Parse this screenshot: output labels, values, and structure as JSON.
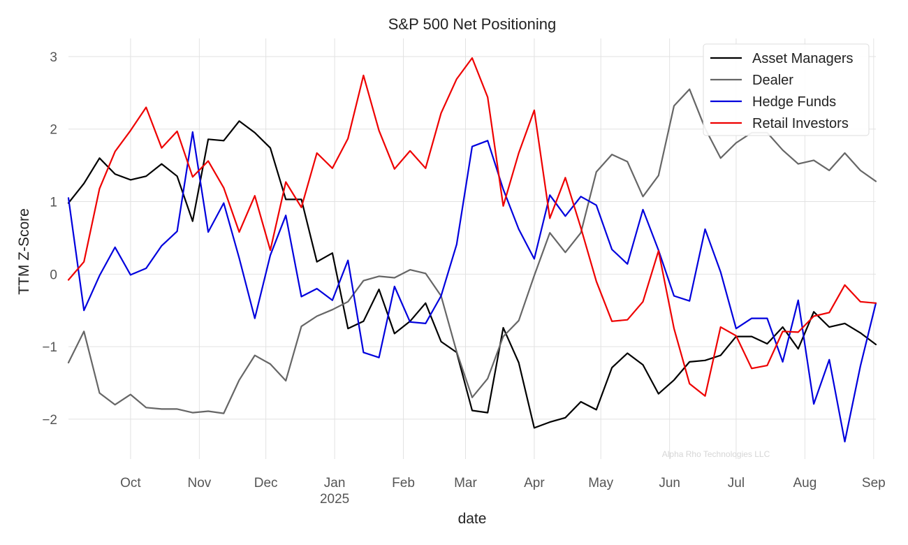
{
  "chart_data": {
    "type": "line",
    "title": "S&P 500 Net Positioning",
    "xlabel": "date",
    "ylabel": "TTM Z-Score",
    "ylim": [
      -2.55,
      3.25
    ],
    "yticks": [
      3,
      2,
      1,
      0,
      -1,
      -2
    ],
    "ytick_labels": [
      "3",
      "2",
      "1",
      "0",
      "−1",
      "−2"
    ],
    "xlim": [
      "2024-09-03",
      "2025-09-02"
    ],
    "xticks": [
      {
        "label": "Oct",
        "date": "2024-10-01"
      },
      {
        "label": "Nov",
        "date": "2024-11-01"
      },
      {
        "label": "Dec",
        "date": "2024-12-01"
      },
      {
        "label": "Jan",
        "sublabel": "2025",
        "date": "2025-01-01"
      },
      {
        "label": "Feb",
        "date": "2025-02-01"
      },
      {
        "label": "Mar",
        "date": "2025-03-01"
      },
      {
        "label": "Apr",
        "date": "2025-04-01"
      },
      {
        "label": "May",
        "date": "2025-05-01"
      },
      {
        "label": "Jun",
        "date": "2025-06-01"
      },
      {
        "label": "Jul",
        "date": "2025-07-01"
      },
      {
        "label": "Aug",
        "date": "2025-08-01"
      },
      {
        "label": "Sep",
        "date": "2025-09-01"
      }
    ],
    "grid": true,
    "legend_position": "top-right",
    "watermark": "Alpha Rho Technologies LLC",
    "x": [
      "2024-09-03",
      "2024-09-10",
      "2024-09-17",
      "2024-09-24",
      "2024-10-01",
      "2024-10-08",
      "2024-10-15",
      "2024-10-22",
      "2024-10-29",
      "2024-11-05",
      "2024-11-12",
      "2024-11-19",
      "2024-11-26",
      "2024-12-03",
      "2024-12-10",
      "2024-12-17",
      "2024-12-24",
      "2024-12-31",
      "2025-01-07",
      "2025-01-14",
      "2025-01-21",
      "2025-01-28",
      "2025-02-04",
      "2025-02-11",
      "2025-02-18",
      "2025-02-25",
      "2025-03-04",
      "2025-03-11",
      "2025-03-18",
      "2025-03-25",
      "2025-04-01",
      "2025-04-08",
      "2025-04-15",
      "2025-04-22",
      "2025-04-29",
      "2025-05-06",
      "2025-05-13",
      "2025-05-20",
      "2025-05-27",
      "2025-06-03",
      "2025-06-10",
      "2025-06-17",
      "2025-06-24",
      "2025-07-01",
      "2025-07-08",
      "2025-07-15",
      "2025-07-22",
      "2025-07-29",
      "2025-08-05",
      "2025-08-12",
      "2025-08-19",
      "2025-08-26",
      "2025-09-02"
    ],
    "series": [
      {
        "name": "Asset Managers",
        "color": "#000000",
        "values": [
          0.98,
          1.25,
          1.6,
          1.38,
          1.3,
          1.35,
          1.52,
          1.35,
          0.73,
          1.86,
          1.84,
          2.11,
          1.95,
          1.74,
          1.03,
          1.03,
          0.17,
          0.29,
          -0.75,
          -0.65,
          -0.21,
          -0.82,
          -0.65,
          -0.4,
          -0.93,
          -1.08,
          -1.88,
          -1.91,
          -0.74,
          -1.22,
          -2.12,
          -2.04,
          -1.98,
          -1.76,
          -1.87,
          -1.29,
          -1.09,
          -1.25,
          -1.65,
          -1.46,
          -1.21,
          -1.19,
          -1.12,
          -0.86,
          -0.86,
          -0.96,
          -0.73,
          -1.03,
          -0.52,
          -0.73,
          -0.68,
          -0.81,
          -0.97
        ]
      },
      {
        "name": "Dealer",
        "color": "#666666",
        "values": [
          -1.22,
          -0.79,
          -1.64,
          -1.8,
          -1.66,
          -1.84,
          -1.86,
          -1.86,
          -1.91,
          -1.89,
          -1.92,
          -1.46,
          -1.12,
          -1.24,
          -1.47,
          -0.72,
          -0.58,
          -0.49,
          -0.38,
          -0.09,
          -0.03,
          -0.05,
          0.06,
          0.01,
          -0.3,
          -1.07,
          -1.7,
          -1.44,
          -0.86,
          -0.64,
          -0.02,
          0.57,
          0.3,
          0.57,
          1.41,
          1.65,
          1.55,
          1.07,
          1.36,
          2.32,
          2.55,
          2.01,
          1.6,
          1.81,
          1.95,
          1.95,
          1.71,
          1.52,
          1.57,
          1.43,
          1.67,
          1.43,
          1.28
        ]
      },
      {
        "name": "Hedge Funds",
        "color": "#0000dd",
        "values": [
          1.05,
          -0.5,
          -0.02,
          0.37,
          -0.01,
          0.08,
          0.39,
          0.59,
          1.96,
          0.58,
          0.98,
          0.22,
          -0.61,
          0.26,
          0.81,
          -0.31,
          -0.2,
          -0.36,
          0.19,
          -1.08,
          -1.15,
          -0.17,
          -0.66,
          -0.68,
          -0.3,
          0.41,
          1.76,
          1.84,
          1.17,
          0.62,
          0.21,
          1.09,
          0.8,
          1.07,
          0.95,
          0.34,
          0.14,
          0.89,
          0.33,
          -0.3,
          -0.37,
          0.62,
          0.03,
          -0.75,
          -0.61,
          -0.61,
          -1.21,
          -0.36,
          -1.79,
          -1.18,
          -2.31,
          -1.27,
          -0.4
        ]
      },
      {
        "name": "Retail Investors",
        "color": "#ee0000",
        "values": [
          -0.08,
          0.17,
          1.18,
          1.69,
          1.98,
          2.3,
          1.74,
          1.97,
          1.34,
          1.56,
          1.19,
          0.58,
          1.08,
          0.33,
          1.27,
          0.92,
          1.67,
          1.46,
          1.87,
          2.74,
          1.98,
          1.45,
          1.7,
          1.46,
          2.22,
          2.69,
          2.98,
          2.44,
          0.94,
          1.67,
          2.26,
          0.77,
          1.33,
          0.64,
          -0.1,
          -0.65,
          -0.63,
          -0.38,
          0.32,
          -0.75,
          -1.51,
          -1.68,
          -0.73,
          -0.85,
          -1.3,
          -1.26,
          -0.79,
          -0.8,
          -0.58,
          -0.53,
          -0.15,
          -0.38,
          -0.4
        ]
      }
    ]
  }
}
